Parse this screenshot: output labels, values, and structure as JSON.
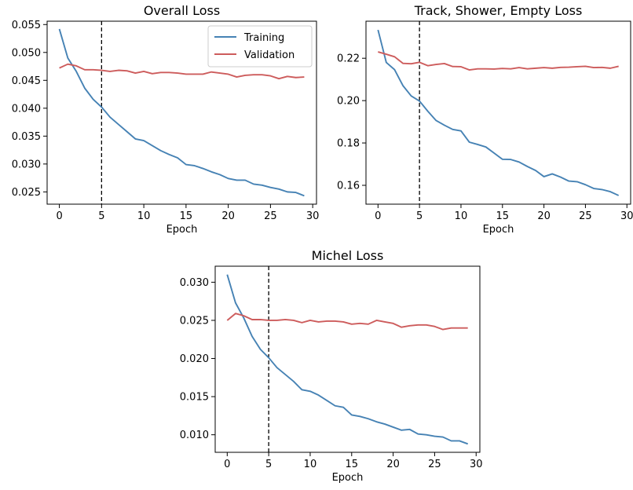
{
  "colors": {
    "training": "#4682b4",
    "validation": "#cd5c5c",
    "marker": "#000000"
  },
  "chart_data": [
    {
      "id": "overall",
      "type": "line",
      "title": "Overall Loss",
      "xlabel": "Epoch",
      "ylabel": "",
      "xlim": [
        -1.45,
        30.45
      ],
      "ylim": [
        0.0228,
        0.0556
      ],
      "xticks": [
        0,
        5,
        10,
        15,
        20,
        25,
        30
      ],
      "yticks": [
        0.025,
        0.03,
        0.035,
        0.04,
        0.045,
        0.05,
        0.055
      ],
      "ytick_labels": [
        "0.025",
        "0.030",
        "0.035",
        "0.040",
        "0.045",
        "0.050",
        "0.055"
      ],
      "vline_x": 5,
      "legend": {
        "position": "top-right",
        "entries": [
          "Training",
          "Validation"
        ]
      },
      "x": [
        0,
        1,
        2,
        3,
        4,
        5,
        6,
        7,
        8,
        9,
        10,
        11,
        12,
        13,
        14,
        15,
        16,
        17,
        18,
        19,
        20,
        21,
        22,
        23,
        24,
        25,
        26,
        27,
        28,
        29
      ],
      "series": [
        {
          "name": "Training",
          "values": [
            0.0542,
            0.049,
            0.0466,
            0.0436,
            0.0416,
            0.0402,
            0.0384,
            0.0371,
            0.0358,
            0.0345,
            0.0342,
            0.0333,
            0.0324,
            0.0317,
            0.0311,
            0.0299,
            0.0297,
            0.0292,
            0.0286,
            0.0281,
            0.0274,
            0.0271,
            0.0271,
            0.0264,
            0.0262,
            0.0258,
            0.0255,
            0.025,
            0.0249,
            0.0243
          ]
        },
        {
          "name": "Validation",
          "values": [
            0.0472,
            0.0479,
            0.0476,
            0.0469,
            0.0469,
            0.0468,
            0.0466,
            0.0468,
            0.0467,
            0.0463,
            0.0466,
            0.0462,
            0.0464,
            0.0464,
            0.0463,
            0.0461,
            0.0461,
            0.0461,
            0.0465,
            0.0463,
            0.0461,
            0.0456,
            0.0459,
            0.046,
            0.046,
            0.0458,
            0.0453,
            0.0457,
            0.0455,
            0.0456
          ]
        }
      ]
    },
    {
      "id": "track",
      "type": "line",
      "title": "Track, Shower, Empty Loss",
      "xlabel": "Epoch",
      "ylabel": "",
      "xlim": [
        -1.45,
        30.45
      ],
      "ylim": [
        0.1511,
        0.2375
      ],
      "xticks": [
        0,
        5,
        10,
        15,
        20,
        25,
        30
      ],
      "yticks": [
        0.16,
        0.18,
        0.2,
        0.22
      ],
      "ytick_labels": [
        "0.16",
        "0.18",
        "0.20",
        "0.22"
      ],
      "vline_x": 5,
      "legend": null,
      "x": [
        0,
        1,
        2,
        3,
        4,
        5,
        6,
        7,
        8,
        9,
        10,
        11,
        12,
        13,
        14,
        15,
        16,
        17,
        18,
        19,
        20,
        21,
        22,
        23,
        24,
        25,
        26,
        27,
        28,
        29
      ],
      "series": [
        {
          "name": "",
          "values": [
            0.2334,
            0.218,
            0.2146,
            0.2071,
            0.2022,
            0.1998,
            0.195,
            0.1906,
            0.1884,
            0.1864,
            0.1857,
            0.1804,
            0.1793,
            0.1781,
            0.1752,
            0.1723,
            0.1722,
            0.171,
            0.1689,
            0.167,
            0.1641,
            0.1654,
            0.1639,
            0.162,
            0.1617,
            0.1603,
            0.1585,
            0.158,
            0.157,
            0.1552
          ]
        },
        {
          "name": "",
          "values": [
            0.223,
            0.2219,
            0.2207,
            0.2176,
            0.2174,
            0.2181,
            0.2165,
            0.2171,
            0.2175,
            0.2161,
            0.216,
            0.2145,
            0.215,
            0.215,
            0.2149,
            0.2152,
            0.215,
            0.2156,
            0.215,
            0.2153,
            0.2156,
            0.2153,
            0.2157,
            0.2158,
            0.216,
            0.2162,
            0.2156,
            0.2157,
            0.2153,
            0.2162
          ]
        }
      ]
    },
    {
      "id": "michel",
      "type": "line",
      "title": "Michel Loss",
      "xlabel": "Epoch",
      "ylabel": "",
      "xlim": [
        -1.45,
        30.45
      ],
      "ylim": [
        0.0077,
        0.0321
      ],
      "xticks": [
        0,
        5,
        10,
        15,
        20,
        25,
        30
      ],
      "yticks": [
        0.01,
        0.015,
        0.02,
        0.025,
        0.03
      ],
      "ytick_labels": [
        "0.010",
        "0.015",
        "0.020",
        "0.025",
        "0.030"
      ],
      "vline_x": 5,
      "legend": null,
      "x": [
        0,
        1,
        2,
        3,
        4,
        5,
        6,
        7,
        8,
        9,
        10,
        11,
        12,
        13,
        14,
        15,
        16,
        17,
        18,
        19,
        20,
        21,
        22,
        23,
        24,
        25,
        26,
        27,
        28,
        29
      ],
      "series": [
        {
          "name": "",
          "values": [
            0.031,
            0.0273,
            0.0253,
            0.0229,
            0.0212,
            0.0201,
            0.0188,
            0.0179,
            0.017,
            0.0159,
            0.0157,
            0.0152,
            0.0145,
            0.0138,
            0.0136,
            0.0126,
            0.0124,
            0.0121,
            0.0117,
            0.0114,
            0.011,
            0.0106,
            0.0107,
            0.0101,
            0.01,
            0.0098,
            0.0097,
            0.0092,
            0.0092,
            0.0088
          ]
        },
        {
          "name": "",
          "values": [
            0.025,
            0.0259,
            0.0256,
            0.0251,
            0.0251,
            0.025,
            0.025,
            0.0251,
            0.025,
            0.0247,
            0.025,
            0.0248,
            0.0249,
            0.0249,
            0.0248,
            0.0245,
            0.0246,
            0.0245,
            0.025,
            0.0248,
            0.0246,
            0.0241,
            0.0243,
            0.0244,
            0.0244,
            0.0242,
            0.0238,
            0.024,
            0.024,
            0.024
          ]
        }
      ]
    }
  ]
}
